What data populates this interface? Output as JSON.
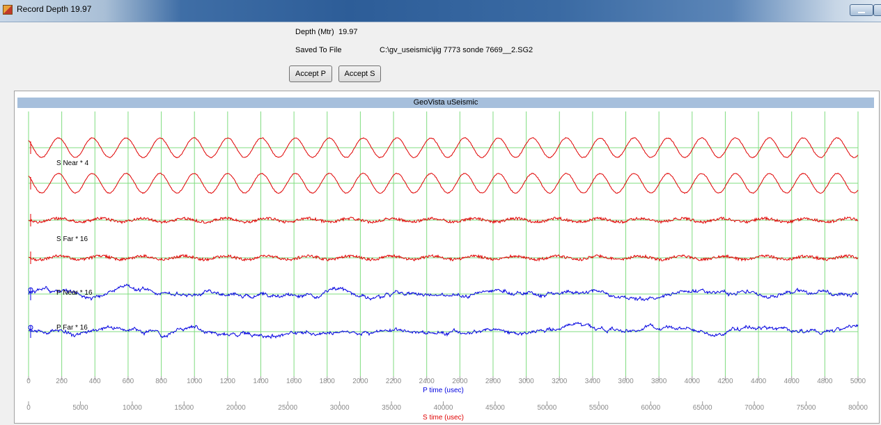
{
  "window": {
    "title": "Record Depth 19.97"
  },
  "info": {
    "depth_label": "Depth (Mtr)",
    "depth_value": "19.97",
    "saved_label": "Saved To File",
    "saved_path": "C:\\gv_useismic\\jig 7773 sonde 7669__2.SG2"
  },
  "buttons": {
    "accept_p": "Accept P",
    "accept_s": "Accept S"
  },
  "colors": {
    "s_trace": "#e00000",
    "p_trace": "#0000e0",
    "grid": "#7fdc7f",
    "header": "#a6bfdc"
  },
  "chart_data": {
    "type": "line",
    "title": "GeoVista uSeismic",
    "p_axis": {
      "label": "P time (usec)",
      "range": [
        0,
        5000
      ],
      "ticks": [
        0,
        200,
        400,
        600,
        800,
        1000,
        1200,
        1400,
        1600,
        1800,
        2000,
        2200,
        2400,
        2600,
        2800,
        3000,
        3200,
        3400,
        3600,
        3800,
        4000,
        4200,
        4400,
        4600,
        4800,
        5000
      ]
    },
    "s_axis": {
      "label": "S time (usec)",
      "range": [
        0,
        80000
      ],
      "ticks": [
        0,
        5000,
        10000,
        15000,
        20000,
        25000,
        30000,
        35000,
        40000,
        45000,
        50000,
        55000,
        60000,
        65000,
        70000,
        75000,
        80000
      ]
    },
    "grid": true,
    "series": [
      {
        "name": "S Near * 4",
        "color": "#e00000",
        "kind": "sine",
        "cycles": 24.5
      },
      {
        "color": "#e00000",
        "kind": "sine",
        "cycles": 24.5
      },
      {
        "color": "#e00000",
        "kind": "noise"
      },
      {
        "name": "S Far * 16",
        "color": "#e00000",
        "kind": "noise"
      },
      {
        "name": "P Near * 16",
        "color": "#0000e0",
        "kind": "wander"
      },
      {
        "name": "P Far * 16",
        "color": "#0000e0",
        "kind": "wander"
      }
    ]
  }
}
